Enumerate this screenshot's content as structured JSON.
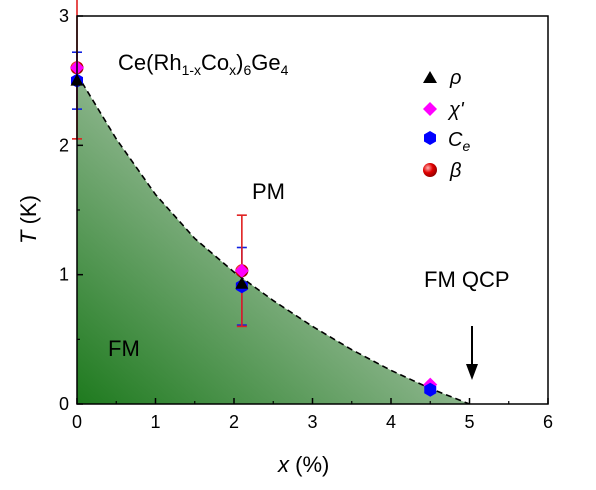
{
  "chart_data": {
    "type": "scatter",
    "title_parts": {
      "a": "Ce(Rh",
      "b": "1-x",
      "c": "Co",
      "d": "x",
      "e": ")",
      "f": "6",
      "g": "Ge",
      "h": "4"
    },
    "xlabel": {
      "var": "x",
      "unit": " (%)"
    },
    "ylabel": {
      "var": "T",
      "unit": " (K)"
    },
    "xlim": [
      0,
      6
    ],
    "ylim": [
      0,
      3
    ],
    "xticks": [
      "0",
      "1",
      "2",
      "3",
      "4",
      "5",
      "6"
    ],
    "yticks": [
      "0",
      "1",
      "2",
      "3"
    ],
    "regions": {
      "fm": "FM",
      "pm": "PM"
    },
    "annotation": {
      "text": "FM QCP",
      "x": 5
    },
    "phase_boundary": {
      "style": "dashed",
      "x": [
        0,
        0.5,
        1.0,
        1.5,
        2.0,
        2.5,
        3.0,
        3.5,
        4.0,
        4.5,
        5.0
      ],
      "y": [
        2.55,
        2.05,
        1.62,
        1.28,
        1.02,
        0.8,
        0.6,
        0.42,
        0.26,
        0.12,
        0.0
      ]
    },
    "series": [
      {
        "name": "ρ",
        "marker": "triangle",
        "color": "#000000",
        "x": [
          0,
          2.1
        ],
        "y": [
          2.5,
          0.93
        ]
      },
      {
        "name": "χ'",
        "marker": "diamond",
        "color": "#ff00ff",
        "x": [
          0,
          2.1,
          4.5
        ],
        "y": [
          2.6,
          1.03,
          0.15
        ]
      },
      {
        "name": "C",
        "name_sub": "e",
        "marker": "hexagon",
        "color": "#0000ff",
        "x": [
          0,
          2.1,
          4.5
        ],
        "y": [
          2.5,
          0.91,
          0.11
        ],
        "yerr": [
          0.22,
          0.3,
          0
        ]
      },
      {
        "name": "β",
        "marker": "sphere",
        "color": "#e00000",
        "x": [
          0,
          2.1
        ],
        "y": [
          2.6,
          1.03
        ],
        "yerr": [
          0.55,
          0.43
        ]
      }
    ],
    "legend_position": "top-right",
    "grid": false
  }
}
